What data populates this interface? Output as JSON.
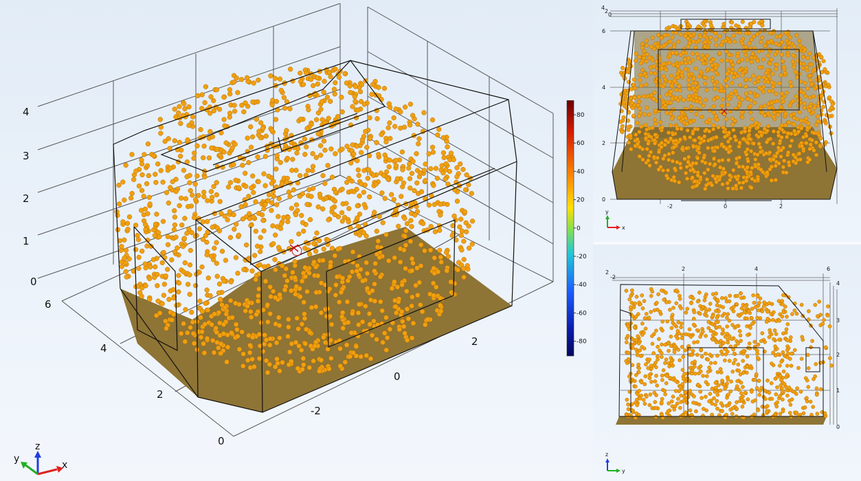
{
  "main_view": {
    "z_ticks": [
      "4",
      "3",
      "2",
      "1",
      "0"
    ],
    "y_ticks": [
      "6",
      "4",
      "2",
      "0"
    ],
    "x_ticks": [
      "2",
      "0",
      "-2"
    ],
    "triad": {
      "x": "x",
      "y": "y",
      "z": "z"
    }
  },
  "colorbar": {
    "ticks": [
      "80",
      "60",
      "40",
      "20",
      "0",
      "-20",
      "-40",
      "-60",
      "-80"
    ],
    "colors": [
      "#7a0000",
      "#d41a00",
      "#ff7a00",
      "#ffd400",
      "#8ae04a",
      "#22c7c7",
      "#1a6cff",
      "#0a1aa8",
      "#040a5a"
    ]
  },
  "top_view": {
    "y_ticks": [
      "6",
      "4",
      "2",
      "0"
    ],
    "x_ticks": [
      "-2",
      "0",
      "2"
    ],
    "corner_ticks": [
      "4",
      "2",
      "0"
    ],
    "triad": {
      "x": "x",
      "y": "y"
    }
  },
  "side_view": {
    "y_ticks": [
      "2",
      "4",
      "6"
    ],
    "z_ticks": [
      "4",
      "3",
      "2",
      "1",
      "0"
    ],
    "corner_ticks": [
      "2",
      "-2"
    ],
    "triad": {
      "y": "y",
      "z": "z"
    }
  },
  "colors": {
    "particle": "#f0a010",
    "floor": "#8e7435",
    "source": "#cc1111"
  }
}
